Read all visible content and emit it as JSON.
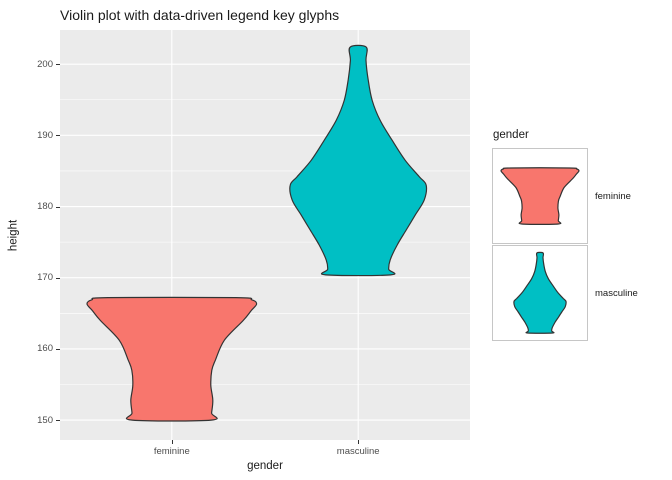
{
  "title": "Violin plot with data-driven legend key glyphs",
  "axes": {
    "x": {
      "label": "gender",
      "categories": [
        "feminine",
        "masculine"
      ]
    },
    "y": {
      "label": "height",
      "ticks": [
        150,
        160,
        170,
        180,
        190,
        200
      ]
    }
  },
  "legend": {
    "title": "gender",
    "entries": [
      {
        "label": "feminine",
        "color": "#F8766D"
      },
      {
        "label": "masculine",
        "color": "#00BFC4"
      }
    ]
  },
  "colors": {
    "feminine_fill": "#F8766D",
    "masculine_fill": "#00BFC4",
    "violin_outline": "#333333",
    "panel_bg": "#EBEBEB",
    "grid": "#FFFFFF",
    "tick_text": "#4D4D4D",
    "text": "#1A1A1A",
    "legend_key_border": "#C6C6C6"
  },
  "chart_data": {
    "type": "violin",
    "title": "Violin plot with data-driven legend key glyphs",
    "xlabel": "gender",
    "ylabel": "height",
    "categories": [
      "feminine",
      "masculine"
    ],
    "category_positions": [
      0.27273,
      0.72727
    ],
    "ylim": [
      147.2,
      204.8
    ],
    "yticks": [
      150,
      160,
      170,
      180,
      190,
      200
    ],
    "grid": true,
    "legend_position": "right",
    "outline": "#333333",
    "series": [
      {
        "name": "feminine",
        "fill": "#F8766D",
        "min": 150.0,
        "max": 167.2,
        "widest_at": 166.4,
        "profile": [
          [
            167.2,
            64.0
          ],
          [
            166.9,
            80.0
          ],
          [
            166.3,
            84.8
          ],
          [
            165.4,
            79.5
          ],
          [
            164.0,
            71.5
          ],
          [
            161.2,
            52.5
          ],
          [
            158.4,
            43.5
          ],
          [
            157.0,
            40.0
          ],
          [
            154.9,
            39.0
          ],
          [
            152.8,
            41.0
          ],
          [
            151.0,
            39.8
          ],
          [
            150.0,
            39.5
          ]
        ]
      },
      {
        "name": "masculine",
        "fill": "#00BFC4",
        "min": 170.4,
        "max": 202.4,
        "widest_at": 183.0,
        "profile": [
          [
            202.4,
            8.0
          ],
          [
            200.5,
            7.8
          ],
          [
            197.8,
            10.0
          ],
          [
            194.9,
            14.0
          ],
          [
            192.1,
            22.0
          ],
          [
            189.3,
            34.0
          ],
          [
            186.5,
            47.0
          ],
          [
            184.2,
            61.0
          ],
          [
            183.0,
            68.0
          ],
          [
            180.9,
            66.0
          ],
          [
            178.8,
            57.0
          ],
          [
            176.7,
            48.0
          ],
          [
            174.6,
            39.0
          ],
          [
            172.5,
            32.0
          ],
          [
            171.2,
            30.5
          ],
          [
            170.4,
            32.5
          ]
        ]
      }
    ]
  }
}
